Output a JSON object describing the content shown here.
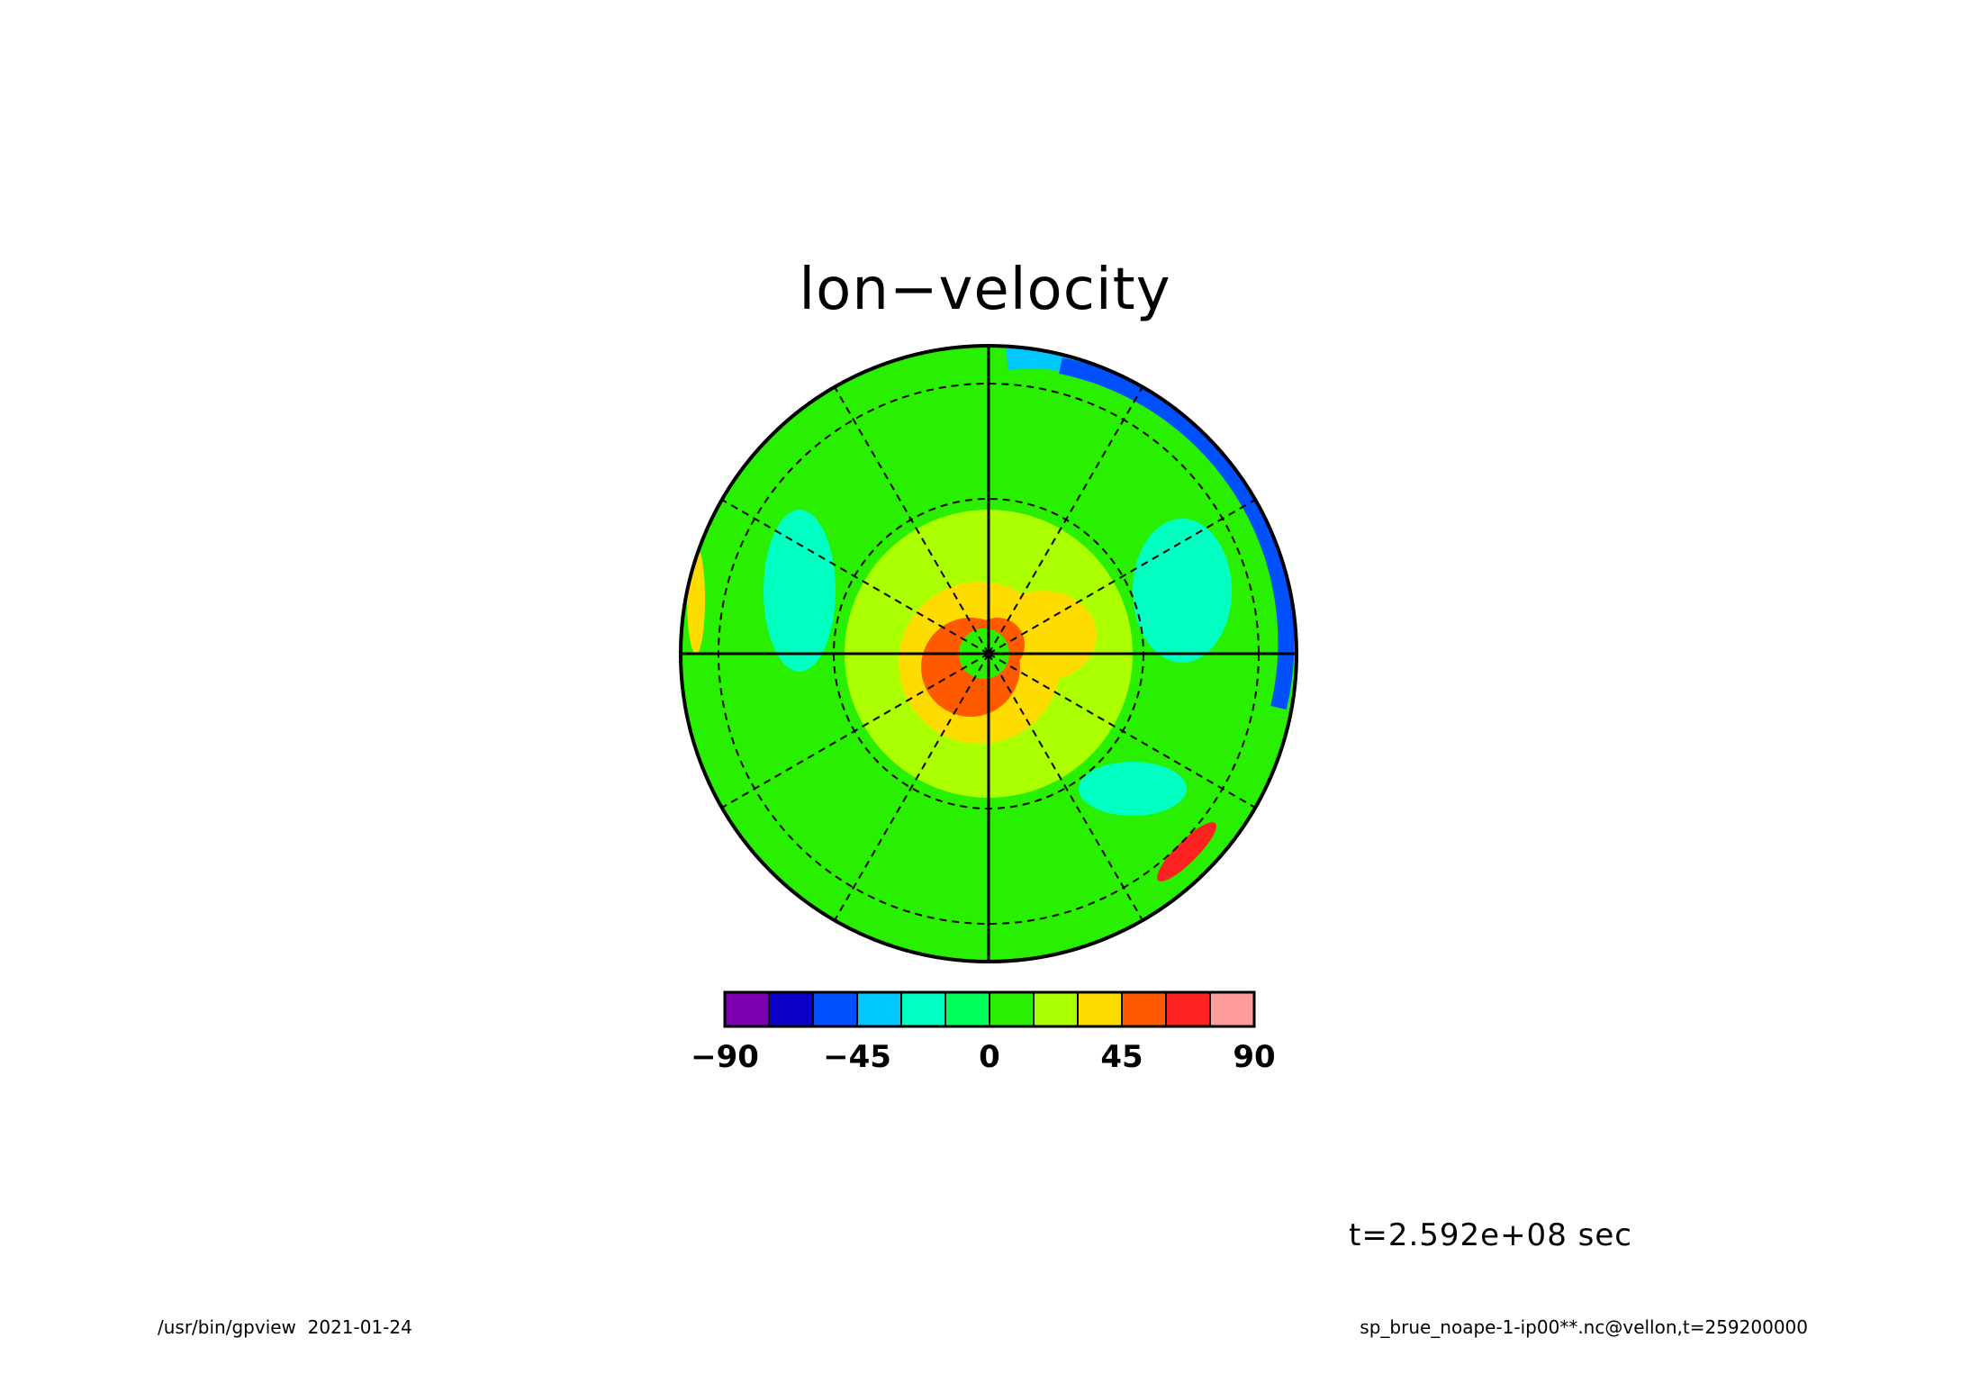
{
  "header": {
    "title": "lon−velocity"
  },
  "chart_data": {
    "type": "heatmap",
    "projection": "polar-stereographic",
    "title": "lon−velocity",
    "colorbar": {
      "levels": [
        -90,
        -75,
        -60,
        -45,
        -30,
        -15,
        0,
        15,
        30,
        45,
        60,
        75,
        90
      ],
      "colors": [
        "#7a00b0",
        "#0a00c8",
        "#0050ff",
        "#00c8ff",
        "#00ffc0",
        "#00ff5a",
        "#28f000",
        "#aaff00",
        "#ffdc00",
        "#ff5a00",
        "#ff2020",
        "#ff9c9c"
      ],
      "ticks": [
        "−90",
        "−45",
        "0",
        "45",
        "90"
      ],
      "tick_values": [
        -90,
        -45,
        0,
        45,
        90
      ]
    },
    "field_regions": [
      {
        "value": 10,
        "description": "background"
      },
      {
        "value": 5,
        "description": "outer ring"
      },
      {
        "value": 25,
        "description": "inner disk"
      },
      {
        "value": 40,
        "description": "center ring"
      },
      {
        "value": 55,
        "description": "center crescent"
      },
      {
        "value": -60,
        "description": "east rim jet"
      },
      {
        "value": -20,
        "description": "east band"
      }
    ],
    "grid": {
      "meridians_solid_deg": [
        0,
        90,
        180,
        270
      ],
      "meridians_dashed_every_deg": 30,
      "latitude_circles": 2
    }
  },
  "annotations": {
    "time": "t=2.592e+08 sec",
    "footer_left": "/usr/bin/gpview  2021-01-24",
    "footer_right": "sp_brue_noape-1-ip00**.nc@vellon,t=259200000"
  }
}
